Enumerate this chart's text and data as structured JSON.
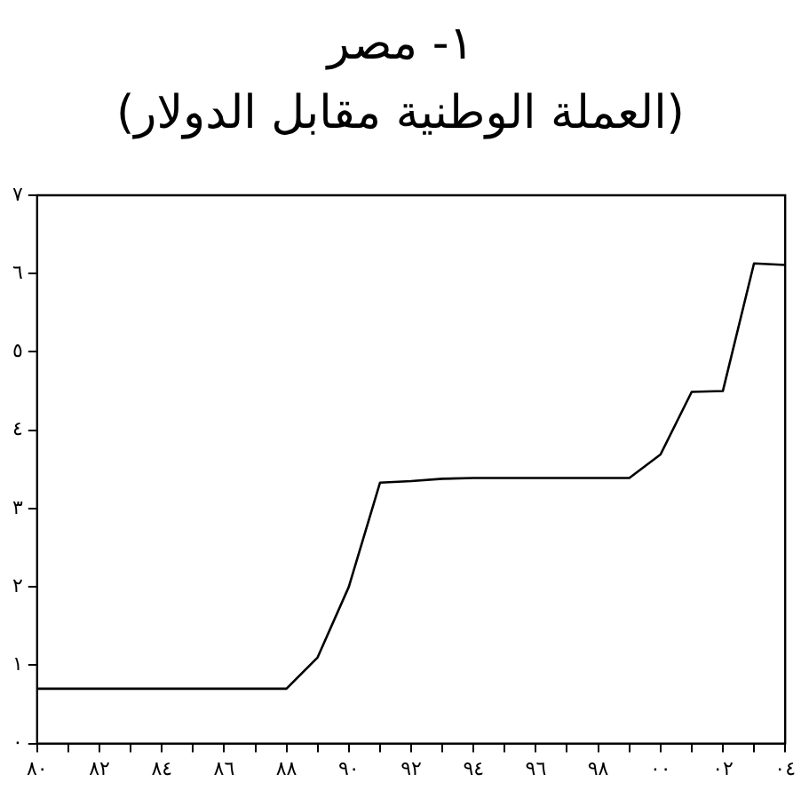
{
  "chart_data": {
    "type": "line",
    "title": "١- مصر",
    "subtitle": "(العملة الوطنية مقابل الدولار)",
    "x": [
      1980,
      1981,
      1982,
      1983,
      1984,
      1985,
      1986,
      1987,
      1988,
      1989,
      1990,
      1991,
      1992,
      1993,
      1994,
      1995,
      1996,
      1997,
      1998,
      1999,
      2000,
      2001,
      2002,
      2003,
      2004
    ],
    "series": [
      {
        "color": "#000000",
        "values": [
          0.7,
          0.7,
          0.7,
          0.7,
          0.7,
          0.7,
          0.7,
          0.7,
          0.7,
          1.1,
          2.0,
          3.33,
          3.35,
          3.38,
          3.39,
          3.39,
          3.39,
          3.39,
          3.39,
          3.39,
          3.69,
          4.49,
          4.5,
          6.13,
          6.11
        ]
      }
    ],
    "xlim": [
      1980,
      2004
    ],
    "xticks": [
      {
        "value": 1980,
        "label": "٨٠"
      },
      {
        "value": 1981,
        "label": null
      },
      {
        "value": 1982,
        "label": "٨٢"
      },
      {
        "value": 1983,
        "label": null
      },
      {
        "value": 1984,
        "label": "٨٤"
      },
      {
        "value": 1985,
        "label": null
      },
      {
        "value": 1986,
        "label": "٨٦"
      },
      {
        "value": 1987,
        "label": null
      },
      {
        "value": 1988,
        "label": "٨٨"
      },
      {
        "value": 1989,
        "label": null
      },
      {
        "value": 1990,
        "label": "٩٠"
      },
      {
        "value": 1991,
        "label": null
      },
      {
        "value": 1992,
        "label": "٩٢"
      },
      {
        "value": 1993,
        "label": null
      },
      {
        "value": 1994,
        "label": "٩٤"
      },
      {
        "value": 1995,
        "label": null
      },
      {
        "value": 1996,
        "label": "٩٦"
      },
      {
        "value": 1997,
        "label": null
      },
      {
        "value": 1998,
        "label": "٩٨"
      },
      {
        "value": 1999,
        "label": null
      },
      {
        "value": 2000,
        "label": "٠٠"
      },
      {
        "value": 2001,
        "label": null
      },
      {
        "value": 2002,
        "label": "٠٢"
      },
      {
        "value": 2003,
        "label": null
      },
      {
        "value": 2004,
        "label": "٠٤"
      }
    ],
    "ylim": [
      0,
      7
    ],
    "yticks": [
      {
        "value": 0,
        "label": "٠"
      },
      {
        "value": 1,
        "label": "١"
      },
      {
        "value": 2,
        "label": "٢"
      },
      {
        "value": 3,
        "label": "٣"
      },
      {
        "value": 4,
        "label": "٤"
      },
      {
        "value": 5,
        "label": "٥"
      },
      {
        "value": 6,
        "label": "٦"
      },
      {
        "value": 7,
        "label": "٧"
      }
    ],
    "grid": false,
    "legend": false,
    "marker": "none",
    "line_style": "solid"
  }
}
